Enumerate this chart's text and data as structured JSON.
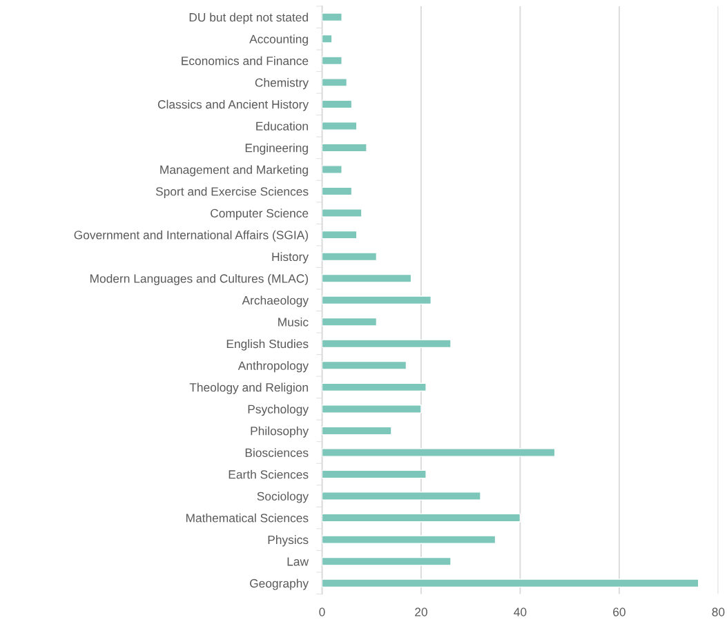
{
  "chart_data": {
    "type": "bar",
    "orientation": "horizontal",
    "categories": [
      "DU but dept not stated",
      "Accounting",
      "Economics and Finance",
      "Chemistry",
      "Classics and Ancient History",
      "Education",
      "Engineering",
      "Management and Marketing",
      "Sport and Exercise Sciences",
      "Computer Science",
      "Government and International Affairs (SGIA)",
      "History",
      "Modern Languages and Cultures (MLAC)",
      "Archaeology",
      "Music",
      "English Studies",
      "Anthropology",
      "Theology and Religion",
      "Psychology",
      "Philosophy",
      "Biosciences",
      "Earth Sciences",
      "Sociology",
      "Mathematical Sciences",
      "Physics",
      "Law",
      "Geography"
    ],
    "values": [
      4,
      2,
      4,
      5,
      6,
      7,
      9,
      4,
      6,
      8,
      7,
      11,
      18,
      22,
      11,
      26,
      17,
      21,
      20,
      14,
      47,
      21,
      32,
      40,
      35,
      26,
      76
    ],
    "color": "#7cc6ba",
    "xlim": [
      0,
      80
    ],
    "xticks": [
      0,
      20,
      40,
      60,
      80
    ],
    "grid": "x"
  }
}
